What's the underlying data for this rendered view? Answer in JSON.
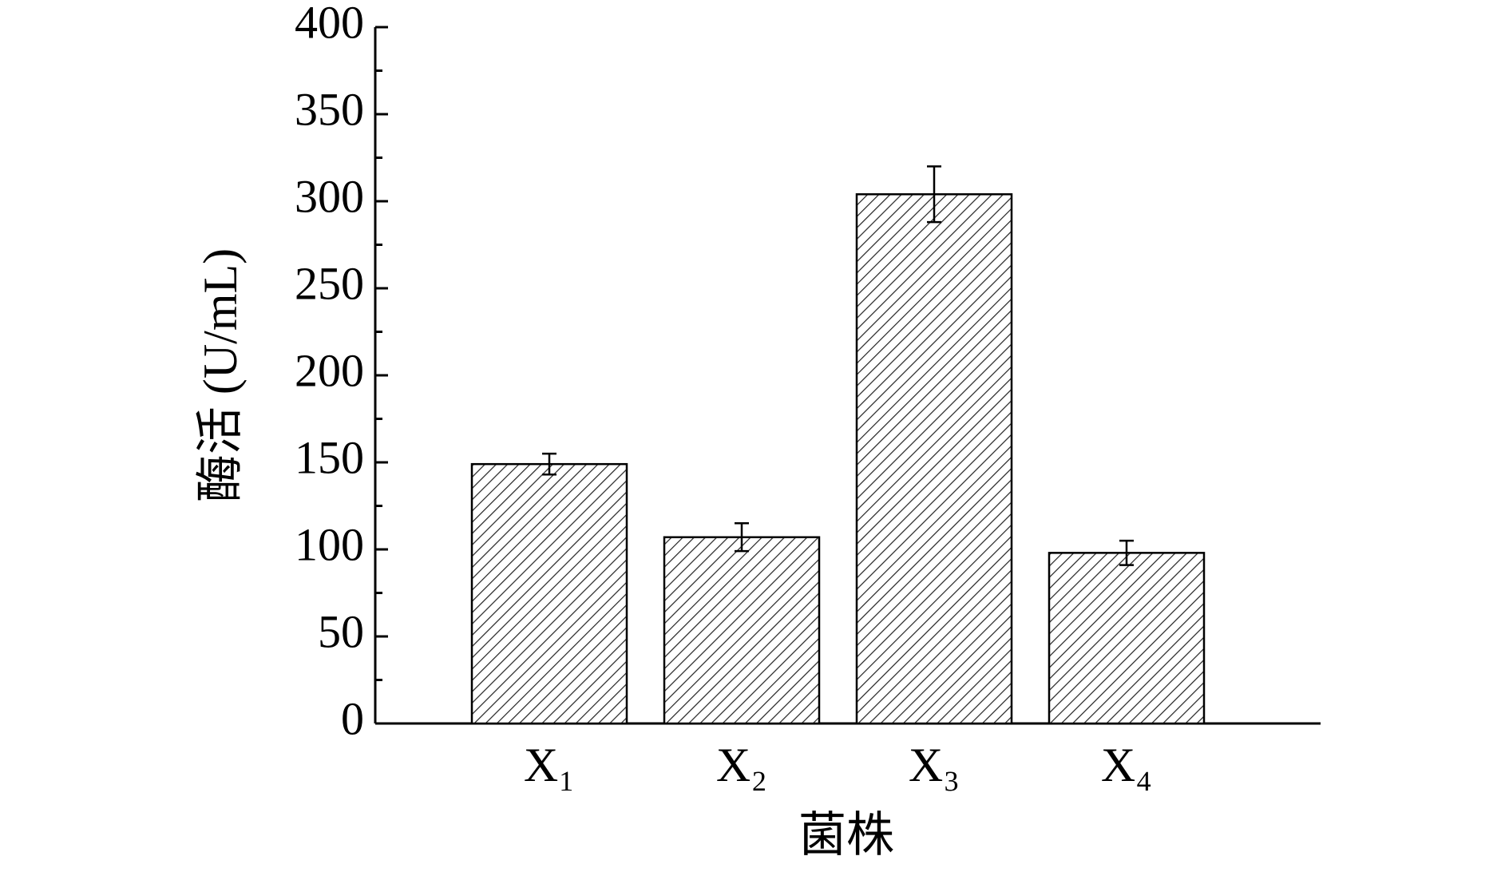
{
  "chart_data": {
    "type": "bar",
    "x_label": "菌株",
    "y_label": "酶活 (U/mL)",
    "categories": [
      "X₁",
      "X₂",
      "X₃",
      "X₄"
    ],
    "values": [
      149,
      107,
      304,
      98
    ],
    "errors": [
      6,
      8,
      16,
      7
    ],
    "color": "#000000",
    "ylim": [
      0,
      400
    ],
    "yticks": [
      0,
      50,
      100,
      150,
      200,
      250,
      300,
      350,
      400
    ],
    "yminor_ticks": [
      25,
      75,
      125,
      175,
      225,
      275,
      325,
      375
    ],
    "grid": false
  }
}
